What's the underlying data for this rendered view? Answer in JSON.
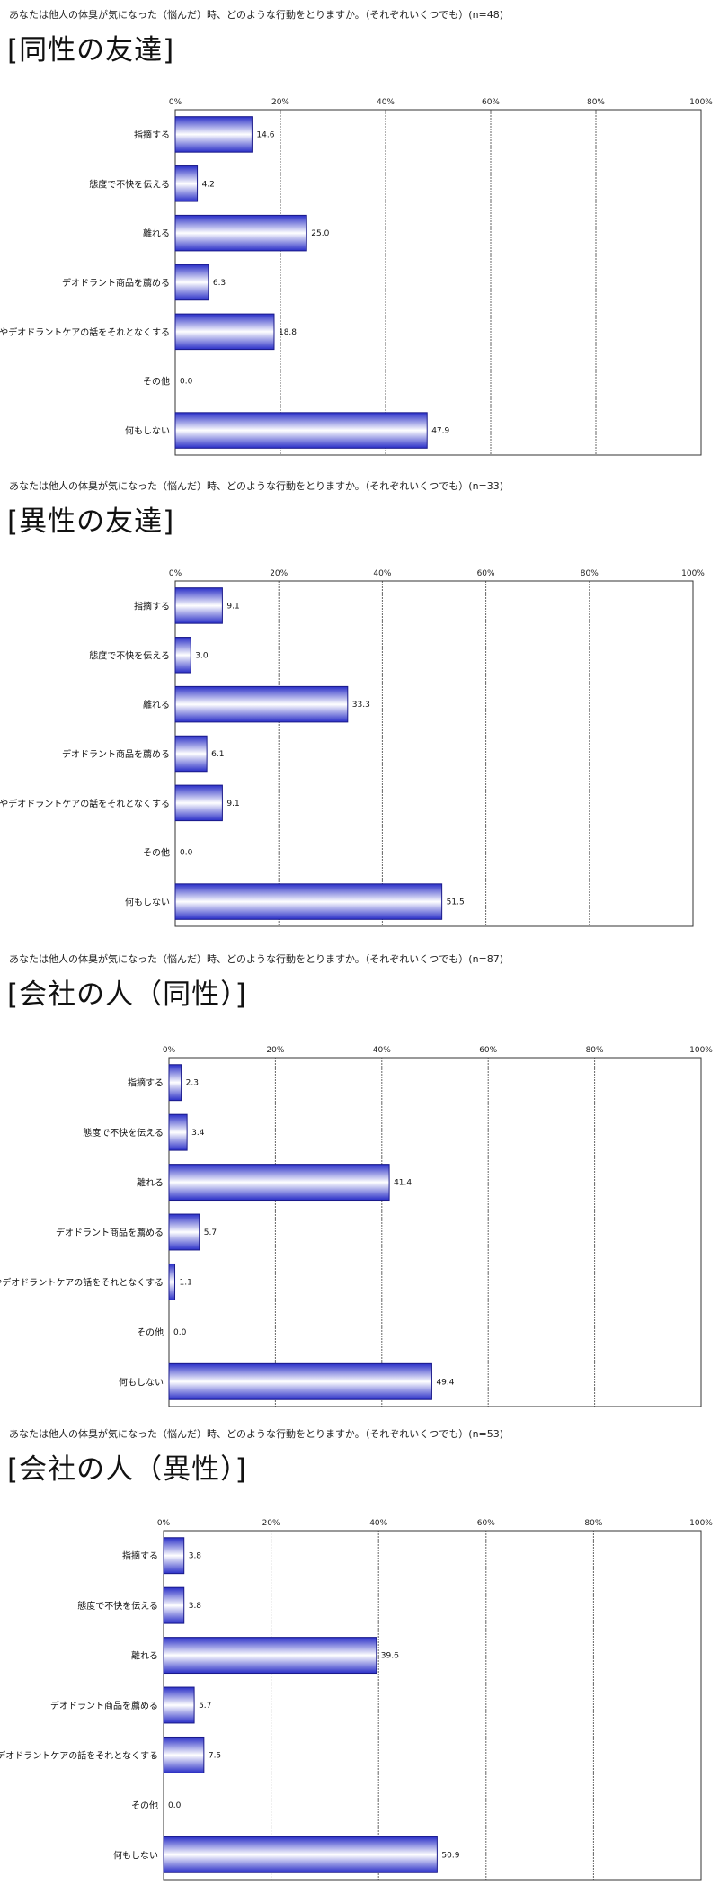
{
  "colors": {
    "bar_dark": "#2a2fc8",
    "bar_light": "#ffffff",
    "bar_stroke": "#1a1a8a",
    "grid": "#666666",
    "frame": "#333333"
  },
  "chart_data": [
    {
      "type": "bar",
      "orientation": "horizontal",
      "question": "あなたは他人の体臭が気になった（悩んだ）時、どのような行動をとりますか。（それぞれいくつでも）(n=48)",
      "title": "[同性の友達]",
      "categories": [
        "指摘する",
        "態度で不快を伝える",
        "離れる",
        "デオドラント商品を薦める",
        "体臭やデオドラントケアの話をそれとなくする",
        "その他",
        "何もしない"
      ],
      "values": [
        14.6,
        4.2,
        25.0,
        6.3,
        18.8,
        0.0,
        47.9
      ],
      "value_labels": [
        "14.6",
        "4.2",
        "25.0",
        "6.3",
        "18.8",
        "0.0",
        "47.9"
      ],
      "xlim": [
        0,
        100
      ],
      "ticks": [
        "0%",
        "20%",
        "40%",
        "60%",
        "80%",
        "100%"
      ],
      "grid": true
    },
    {
      "type": "bar",
      "orientation": "horizontal",
      "question": "あなたは他人の体臭が気になった（悩んだ）時、どのような行動をとりますか。（それぞれいくつでも）(n=33)",
      "title": "[異性の友達]",
      "categories": [
        "指摘する",
        "態度で不快を伝える",
        "離れる",
        "デオドラント商品を薦める",
        "体臭やデオドラントケアの話をそれとなくする",
        "その他",
        "何もしない"
      ],
      "values": [
        9.1,
        3.0,
        33.3,
        6.1,
        9.1,
        0.0,
        51.5
      ],
      "value_labels": [
        "9.1",
        "3.0",
        "33.3",
        "6.1",
        "9.1",
        "0.0",
        "51.5"
      ],
      "xlim": [
        0,
        100
      ],
      "ticks": [
        "0%",
        "20%",
        "40%",
        "60%",
        "80%",
        "100%"
      ],
      "grid": true
    },
    {
      "type": "bar",
      "orientation": "horizontal",
      "question": "あなたは他人の体臭が気になった（悩んだ）時、どのような行動をとりますか。（それぞれいくつでも）(n=87)",
      "title": "[会社の人（同性）]",
      "categories": [
        "指摘する",
        "態度で不快を伝える",
        "離れる",
        "デオドラント商品を薦める",
        "体臭やデオドラントケアの話をそれとなくする",
        "その他",
        "何もしない"
      ],
      "values": [
        2.3,
        3.4,
        41.4,
        5.7,
        1.1,
        0.0,
        49.4
      ],
      "value_labels": [
        "2.3",
        "3.4",
        "41.4",
        "5.7",
        "1.1",
        "0.0",
        "49.4"
      ],
      "xlim": [
        0,
        100
      ],
      "ticks": [
        "0%",
        "20%",
        "40%",
        "60%",
        "80%",
        "100%"
      ],
      "grid": true
    },
    {
      "type": "bar",
      "orientation": "horizontal",
      "question": "あなたは他人の体臭が気になった（悩んだ）時、どのような行動をとりますか。（それぞれいくつでも）(n=53)",
      "title": "[会社の人（異性）]",
      "categories": [
        "指摘する",
        "態度で不快を伝える",
        "離れる",
        "デオドラント商品を薦める",
        "体臭やデオドラントケアの話をそれとなくする",
        "その他",
        "何もしない"
      ],
      "values": [
        3.8,
        3.8,
        39.6,
        5.7,
        7.5,
        0.0,
        50.9
      ],
      "value_labels": [
        "3.8",
        "3.8",
        "39.6",
        "5.7",
        "7.5",
        "0.0",
        "50.9"
      ],
      "xlim": [
        0,
        100
      ],
      "ticks": [
        "0%",
        "20%",
        "40%",
        "60%",
        "80%",
        "100%"
      ],
      "grid": true
    }
  ]
}
